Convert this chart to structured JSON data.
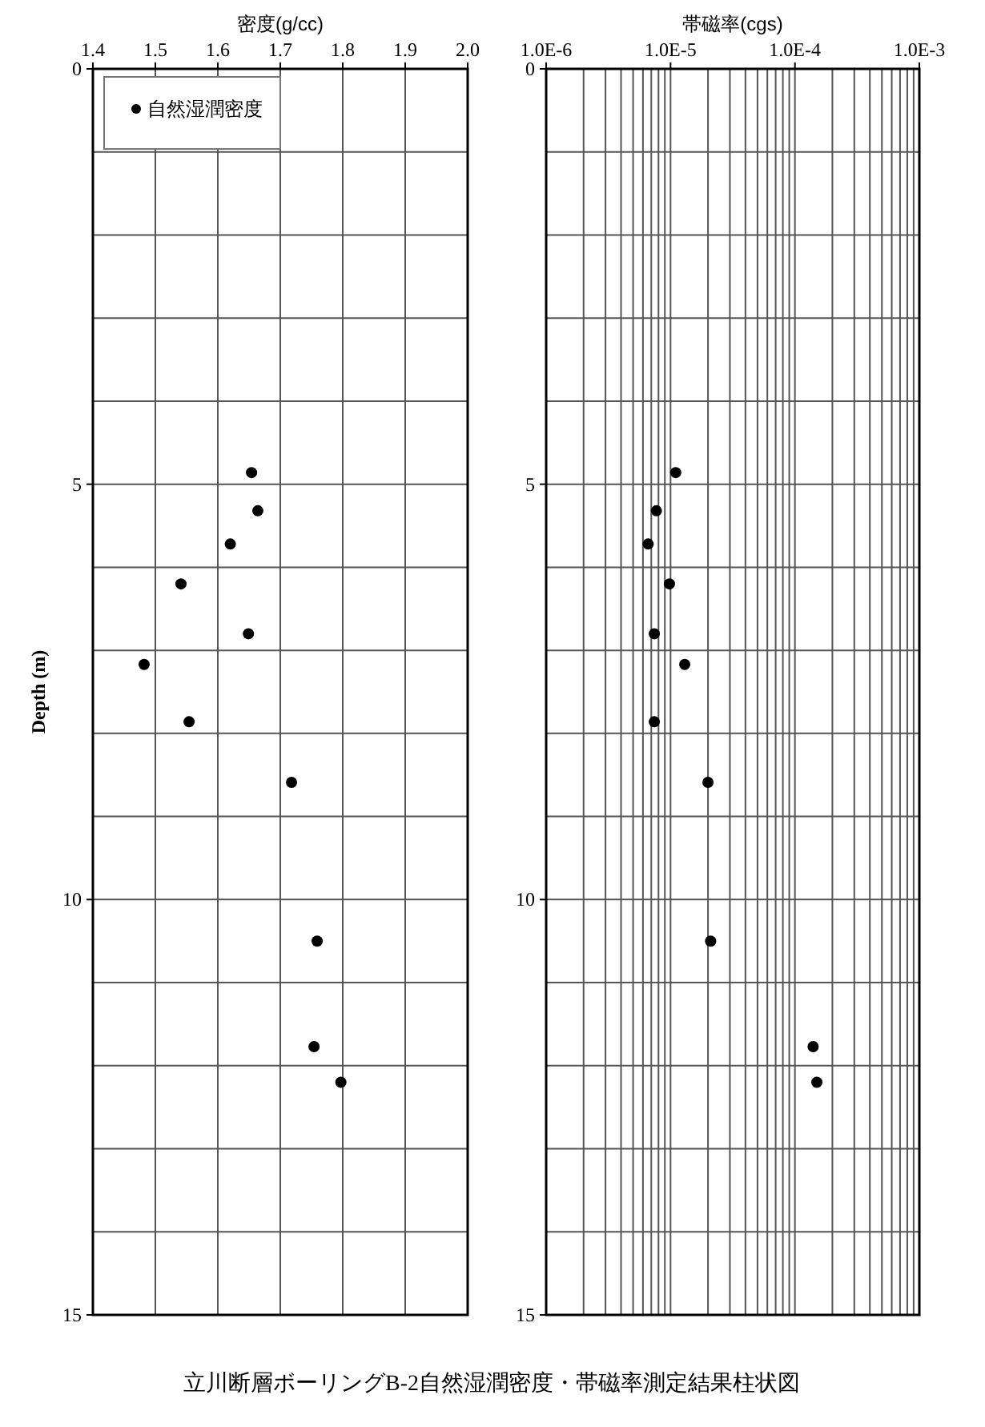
{
  "chart_data": [
    {
      "type": "scatter",
      "xlabel": "密度(g/cc)",
      "ylabel": "Depth (m)",
      "xlim": [
        1.4,
        2.0
      ],
      "xticks": [
        {
          "value": 1.4,
          "label": "1.4"
        },
        {
          "value": 1.5,
          "label": "1.5"
        },
        {
          "value": 1.6,
          "label": "1.6"
        },
        {
          "value": 1.7,
          "label": "1.7"
        },
        {
          "value": 1.8,
          "label": "1.8"
        },
        {
          "value": 1.9,
          "label": "1.9"
        },
        {
          "value": 2.0,
          "label": "2.0"
        }
      ],
      "ylim": [
        15,
        0
      ],
      "yticks": [
        0,
        5,
        10,
        15
      ],
      "grid": true,
      "legend": "top left",
      "marker": "circle",
      "series": [
        {
          "name": "自然湿潤密度",
          "color": "#000000",
          "x": [
            1.654,
            1.664,
            1.62,
            1.541,
            1.649,
            1.482,
            1.554,
            1.718,
            1.759,
            1.754,
            1.797
          ],
          "values": [
            4.86,
            5.32,
            5.72,
            6.2,
            6.8,
            7.17,
            7.86,
            8.59,
            10.5,
            11.77,
            12.2
          ]
        }
      ],
      "annotations": [
        "立川断層ボーリングB-2自然湿潤密度・帯磁率測定結果柱状図"
      ]
    },
    {
      "type": "scatter",
      "xlabel": "帯磁率(cgs)",
      "xlim": [
        1e-06,
        0.001
      ],
      "xticks": [
        {
          "value": 1e-06,
          "label": "1.0E-6"
        },
        {
          "value": 1e-05,
          "label": "1.0E-5"
        },
        {
          "value": 0.0001,
          "label": "1.0E-4"
        },
        {
          "value": 0.001,
          "label": "1.0E-3"
        }
      ],
      "log": "x",
      "ylim": [
        15,
        0
      ],
      "yticks": [
        0,
        5,
        10,
        15
      ],
      "grid": true,
      "marker": "circle",
      "series": [
        {
          "color": "#000000",
          "x": [
            1.1e-05,
            7.7e-06,
            6.6e-06,
            9.8e-06,
            7.4e-06,
            1.3e-05,
            7.4e-06,
            2e-05,
            2.1e-05,
            0.00014,
            0.00015
          ],
          "values": [
            4.86,
            5.32,
            5.72,
            6.2,
            6.8,
            7.17,
            7.86,
            8.59,
            10.5,
            11.77,
            12.2
          ]
        }
      ]
    }
  ]
}
